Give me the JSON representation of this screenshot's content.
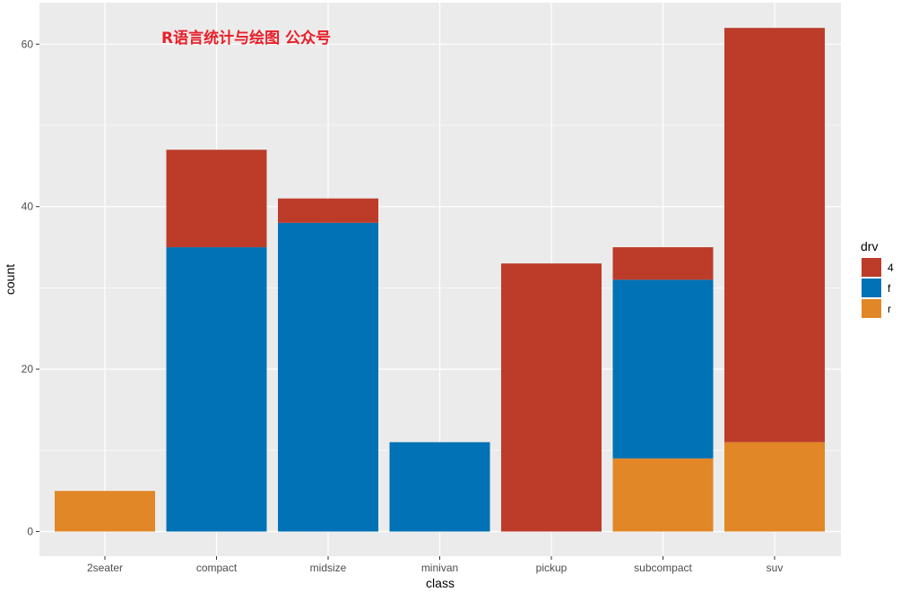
{
  "watermark": "R语言统计与绘图 公众号",
  "colors": {
    "panel_bg": "#ebebeb",
    "grid": "#ffffff",
    "watermark": "#e8202a",
    "drv_4": "#bc3c29",
    "drv_f": "#0072b5",
    "drv_r": "#e18727"
  },
  "chart_data": {
    "type": "bar",
    "stacked": true,
    "xlabel": "class",
    "ylabel": "count",
    "categories": [
      "2seater",
      "compact",
      "midsize",
      "minivan",
      "pickup",
      "subcompact",
      "suv"
    ],
    "ylim": [
      0,
      62
    ],
    "yticks": [
      0,
      20,
      40,
      60
    ],
    "grid": true,
    "legend": {
      "title": "drv",
      "position": "right"
    },
    "series": [
      {
        "name": "4",
        "color": "#bc3c29",
        "values": [
          0,
          12,
          3,
          0,
          33,
          4,
          51
        ]
      },
      {
        "name": "f",
        "color": "#0072b5",
        "values": [
          0,
          35,
          38,
          11,
          0,
          22,
          0
        ]
      },
      {
        "name": "r",
        "color": "#e18727",
        "values": [
          5,
          0,
          0,
          0,
          0,
          9,
          11
        ]
      }
    ]
  }
}
